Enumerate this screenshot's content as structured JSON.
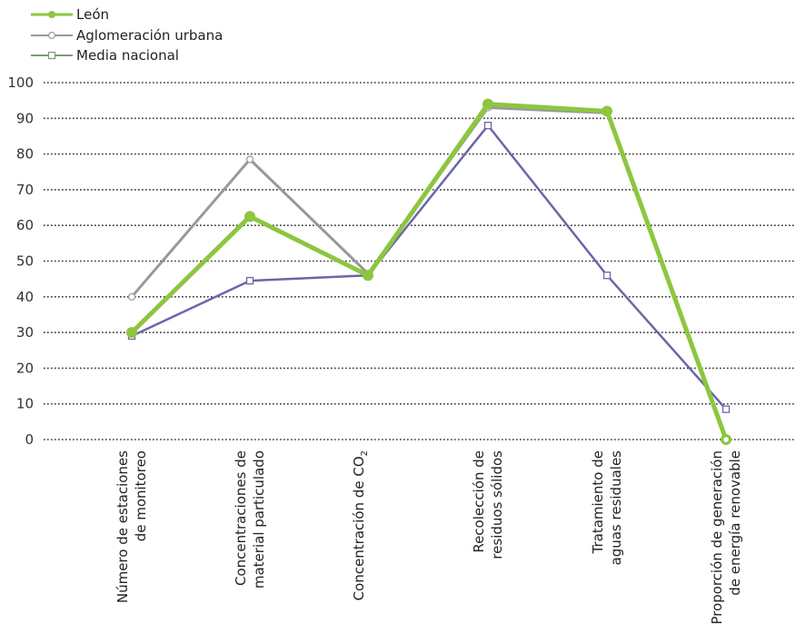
{
  "chart_data": {
    "type": "line",
    "categories": [
      [
        "Número de estaciones",
        "de monitoreo"
      ],
      [
        "Concentraciones de",
        "material particulado"
      ],
      [
        "Concentración de CO",
        "2"
      ],
      [
        "Recolección de",
        "residuos sólidos"
      ],
      [
        "Tratamiento de",
        "aguas residuales"
      ],
      [
        "Proporción de generación",
        "de energía renovable"
      ]
    ],
    "series": [
      {
        "name": "León",
        "values": [
          30,
          62.5,
          46,
          94,
          92,
          0
        ],
        "color": "#8dc63f",
        "marker": "filled-circle"
      },
      {
        "name": "Aglomeración urbana",
        "values": [
          40,
          78.5,
          46.5,
          93,
          91.5,
          0
        ],
        "color": "#999999",
        "marker": "open-circle"
      },
      {
        "name": "Media nacional",
        "values": [
          29,
          44.5,
          46,
          88,
          46,
          8.5
        ],
        "color": "#6b66a8",
        "legend_color": "#7a9a7a",
        "marker": "open-square"
      }
    ],
    "yticks": [
      0,
      10,
      20,
      30,
      40,
      50,
      60,
      70,
      80,
      90,
      100
    ],
    "ylim": [
      0,
      100
    ],
    "grid": "horizontal-dotted",
    "legend_position": "top-left"
  }
}
